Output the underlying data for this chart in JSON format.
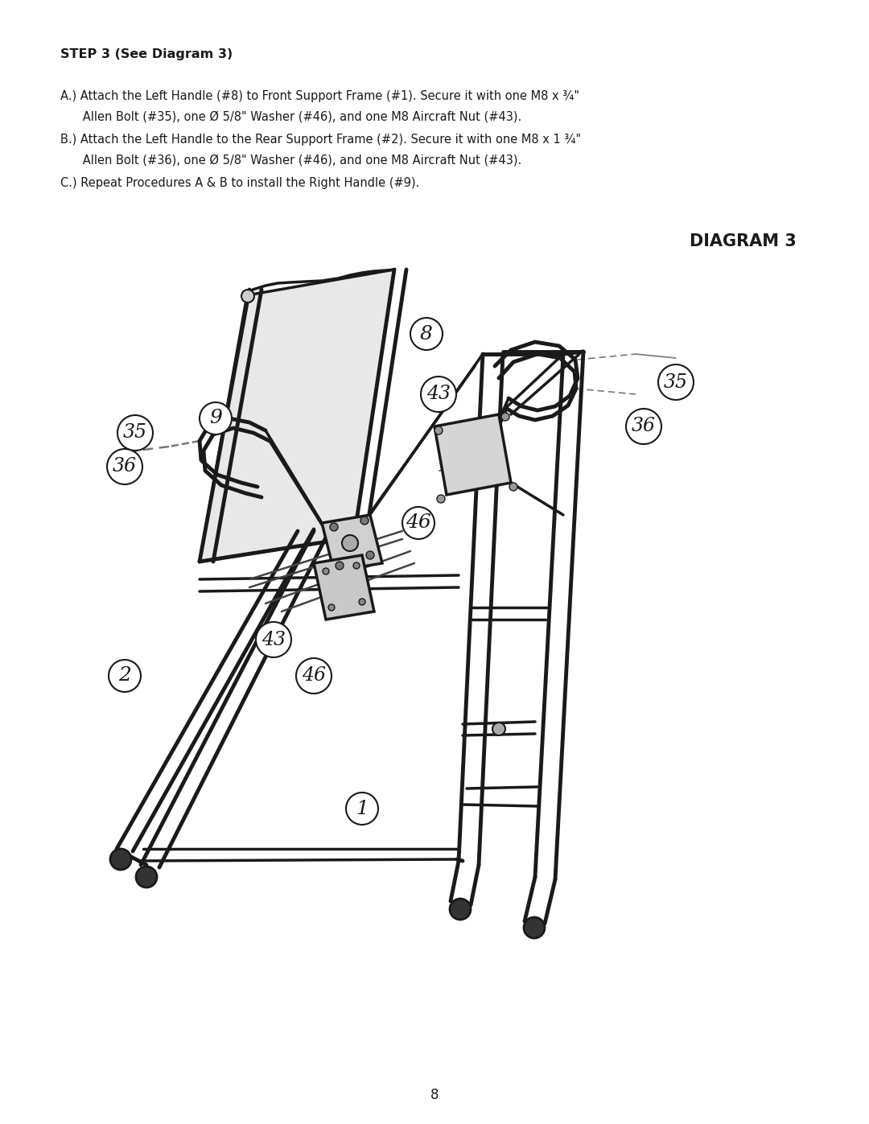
{
  "background_color": "#ffffff",
  "page_number": "8",
  "title_bold": "STEP 3 (See Diagram 3)",
  "line1a": "A.) Attach the Left Handle (#8) to Front Support Frame (#1). Secure it with one M8 x ¾\"",
  "line1b": "      Allen Bolt (#35), one Ø 5/8\" Washer (#46), and one M8 Aircraft Nut (#43).",
  "line2a": "B.) Attach the Left Handle to the Rear Support Frame (#2). Secure it with one M8 x 1 ¾\"",
  "line2b": "      Allen Bolt (#36), one Ø 5/8\" Washer (#46), and one M8 Aircraft Nut (#43).",
  "line3": "C.) Repeat Procedures A & B to install the Right Handle (#9).",
  "diagram_title": "DIAGRAM 3",
  "text_color": "#000000"
}
